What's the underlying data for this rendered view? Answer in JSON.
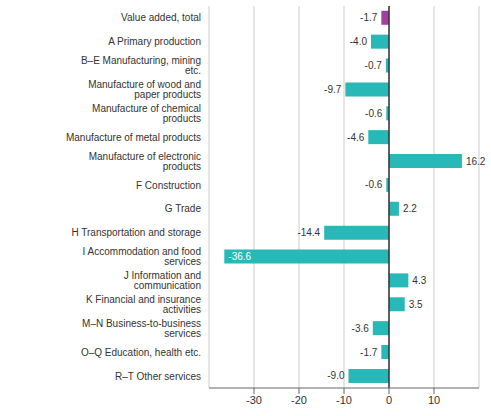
{
  "chart_data": {
    "type": "bar",
    "orientation": "horizontal",
    "categories": [
      "Value added, total",
      "A Primary production",
      "B–E Manufacturing, mining etc.",
      "Manufacture of wood and paper products",
      "Manufacture of chemical products",
      "Manufacture of metal products",
      "Manufacture of electronic products",
      "F Construction",
      "G Trade",
      "H Transportation and storage",
      "I Accommodation and food services",
      "J Information and communication",
      "K Financial and insurance activities",
      "M–N Business-to-business services",
      "O–Q Education, health etc.",
      "R–T Other services"
    ],
    "values": [
      -1.7,
      -4.0,
      -0.7,
      -9.7,
      -0.6,
      -4.6,
      16.2,
      -0.6,
      2.2,
      -14.4,
      -36.6,
      4.3,
      3.5,
      -3.6,
      -1.7,
      -9.0
    ],
    "value_labels": [
      "-1.7",
      "-4.0",
      "-0.7",
      "-9.7",
      "-0.6",
      "-4.6",
      "16.2",
      "-0.6",
      "2.2",
      "-14.4",
      "-36.6",
      "4.3",
      "3.5",
      "-3.6",
      "-1.7",
      "-9.0"
    ],
    "colors": [
      "#a040a0",
      "#29b8b8",
      "#29b8b8",
      "#29b8b8",
      "#29b8b8",
      "#29b8b8",
      "#29b8b8",
      "#29b8b8",
      "#29b8b8",
      "#29b8b8",
      "#29b8b8",
      "#29b8b8",
      "#29b8b8",
      "#29b8b8",
      "#29b8b8",
      "#29b8b8"
    ],
    "xlim": [
      -40,
      20
    ],
    "xticks": [
      -30,
      -20,
      -10,
      0,
      10
    ],
    "grid": true,
    "data_labels": true
  }
}
